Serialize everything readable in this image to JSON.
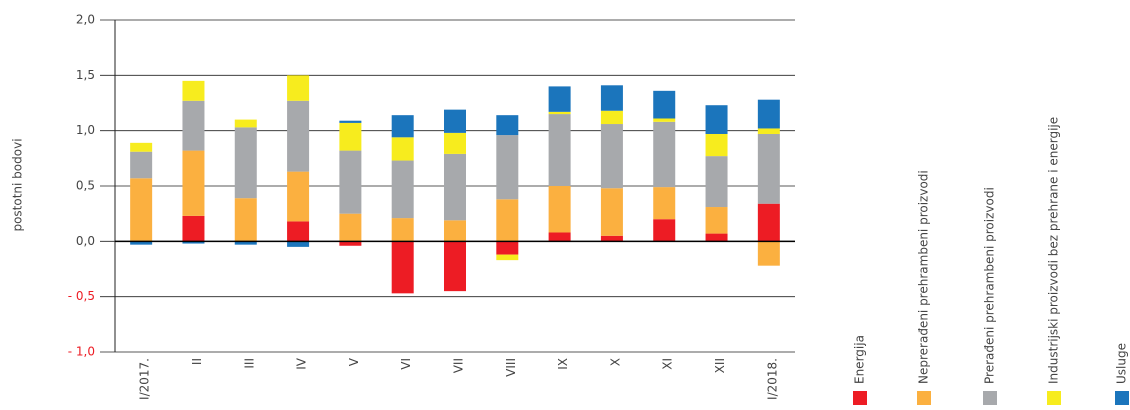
{
  "chart_data": {
    "type": "stacked_bar",
    "y_label": "postotni bodovi",
    "categories": [
      "I/2017.",
      "II",
      "III",
      "IV",
      "V",
      "VI",
      "VII",
      "VIII",
      "IX",
      "X",
      "XI",
      "XII",
      "I/2018."
    ],
    "series": [
      {
        "name": "Energija",
        "color": "#ed1c24",
        "values": [
          0,
          0.23,
          0,
          0.18,
          -0.04,
          -0.47,
          -0.45,
          -0.12,
          0.08,
          0.05,
          0.2,
          0.07,
          0.34
        ]
      },
      {
        "name": "Neprerađeni prehrambeni proizvodi",
        "color": "#fbb040",
        "values": [
          0.57,
          0.59,
          0.39,
          0.45,
          0.25,
          0.21,
          0.19,
          0.38,
          0.42,
          0.43,
          0.29,
          0.24,
          -0.22
        ]
      },
      {
        "name": "Prerađeni prehrambeni proizvodi",
        "color": "#a7a9ac",
        "values": [
          0.24,
          0.45,
          0.64,
          0.64,
          0.57,
          0.52,
          0.6,
          0.58,
          0.65,
          0.58,
          0.59,
          0.46,
          0.63
        ]
      },
      {
        "name": "Industrijski proizvodi bez prehrane i energije",
        "color": "#f7ec1e",
        "values": [
          0.08,
          0.18,
          0.07,
          0.23,
          0.25,
          0.21,
          0.19,
          -0.05,
          0.02,
          0.12,
          0.03,
          0.2,
          0.05
        ]
      },
      {
        "name": "Usluge",
        "color": "#1b75bc",
        "values": [
          -0.03,
          -0.02,
          -0.03,
          -0.05,
          0.02,
          0.2,
          0.21,
          0.18,
          0.23,
          0.23,
          0.25,
          0.26,
          0.26
        ]
      }
    ],
    "ylim": [
      -1,
      2
    ],
    "yticks": [
      {
        "value": 2,
        "label": "2,0"
      },
      {
        "value": 1.5,
        "label": "1,5"
      },
      {
        "value": 1,
        "label": "1,0"
      },
      {
        "value": 0.5,
        "label": "0,5"
      },
      {
        "value": 0,
        "label": "0,0"
      },
      {
        "value": -0.5,
        "label": "- 0,5"
      },
      {
        "value": -1,
        "label": "- 1,0"
      }
    ],
    "grid": true
  }
}
